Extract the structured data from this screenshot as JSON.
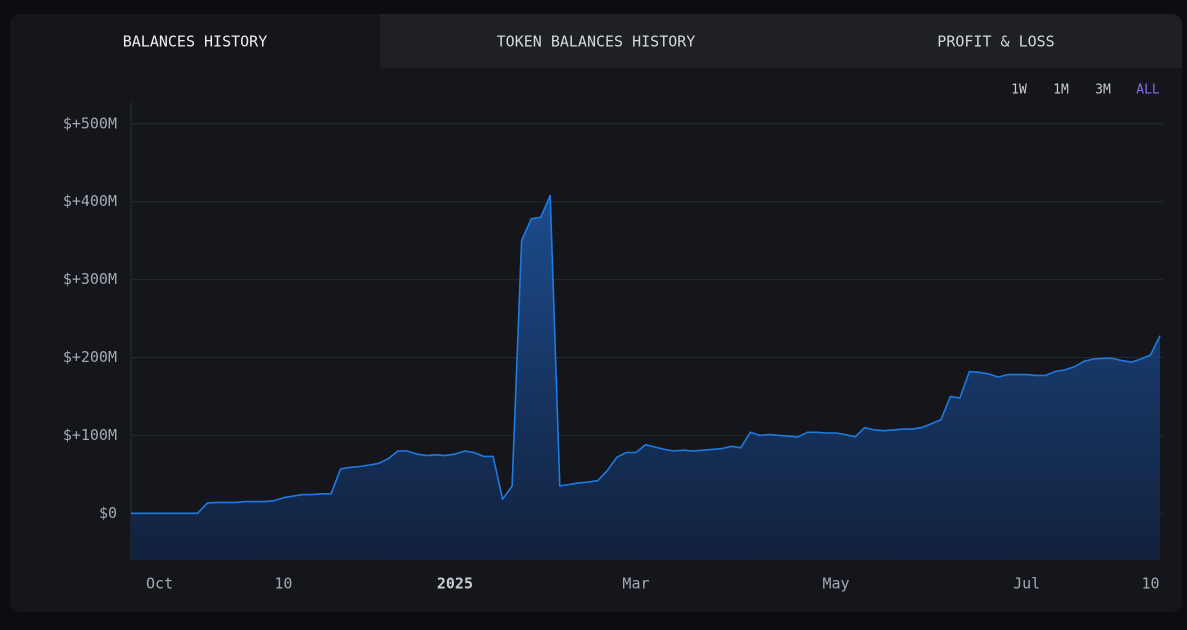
{
  "tabs": [
    "BALANCES HISTORY",
    "TOKEN BALANCES HISTORY",
    "PROFIT & LOSS"
  ],
  "ranges": [
    "1W",
    "1M",
    "3M",
    "ALL"
  ],
  "chart_data": {
    "type": "area",
    "color": "#1f7ae0",
    "categories": [
      null,
      null,
      null,
      "Oct",
      null,
      null,
      null,
      null,
      null,
      null,
      null,
      null,
      null,
      null,
      null,
      null,
      "10",
      null,
      null,
      null,
      null,
      null,
      null,
      null,
      null,
      null,
      null,
      null,
      null,
      null,
      null,
      null,
      null,
      null,
      "2025",
      null,
      null,
      null,
      null,
      null,
      null,
      null,
      null,
      null,
      null,
      null,
      null,
      null,
      null,
      null,
      null,
      null,
      null,
      "Mar",
      null,
      null,
      null,
      null,
      null,
      null,
      null,
      null,
      null,
      null,
      null,
      null,
      null,
      null,
      null,
      null,
      null,
      null,
      null,
      null,
      "May",
      null,
      null,
      null,
      null,
      null,
      null,
      null,
      null,
      null,
      null,
      null,
      null,
      null,
      null,
      null,
      null,
      null,
      null,
      null,
      "Jul",
      null,
      null,
      null,
      null,
      null,
      null,
      null,
      null,
      null,
      null,
      null,
      null,
      "10",
      null
    ],
    "values": [
      0,
      0,
      0,
      0,
      0,
      0,
      0,
      0,
      13,
      14,
      14,
      14,
      15,
      15,
      15,
      16,
      20,
      22,
      24,
      24,
      25,
      25,
      57,
      59,
      60,
      62,
      64,
      70,
      80,
      80,
      76,
      74,
      75,
      74,
      76,
      80,
      78,
      73,
      73,
      18,
      35,
      350,
      378,
      380,
      408,
      35,
      37,
      39,
      40,
      42,
      55,
      72,
      78,
      78,
      88,
      85,
      82,
      80,
      81,
      80,
      81,
      82,
      83,
      86,
      84,
      104,
      100,
      101,
      100,
      99,
      98,
      104,
      104,
      103,
      103,
      101,
      98,
      110,
      107,
      106,
      107,
      108,
      108,
      110,
      115,
      120,
      150,
      148,
      182,
      181,
      179,
      175,
      178,
      178,
      178,
      177,
      177,
      182,
      184,
      188,
      195,
      198,
      199,
      199,
      196,
      194,
      198,
      203,
      228
    ],
    "ylim": [
      -60,
      528
    ],
    "yticks": [
      {
        "value": 0,
        "label": "$0"
      },
      {
        "value": 100,
        "label": "$+100M"
      },
      {
        "value": 200,
        "label": "$+200M"
      },
      {
        "value": 300,
        "label": "$+300M"
      },
      {
        "value": 400,
        "label": "$+400M"
      },
      {
        "value": 500,
        "label": "$+500M"
      }
    ],
    "grid": true
  }
}
